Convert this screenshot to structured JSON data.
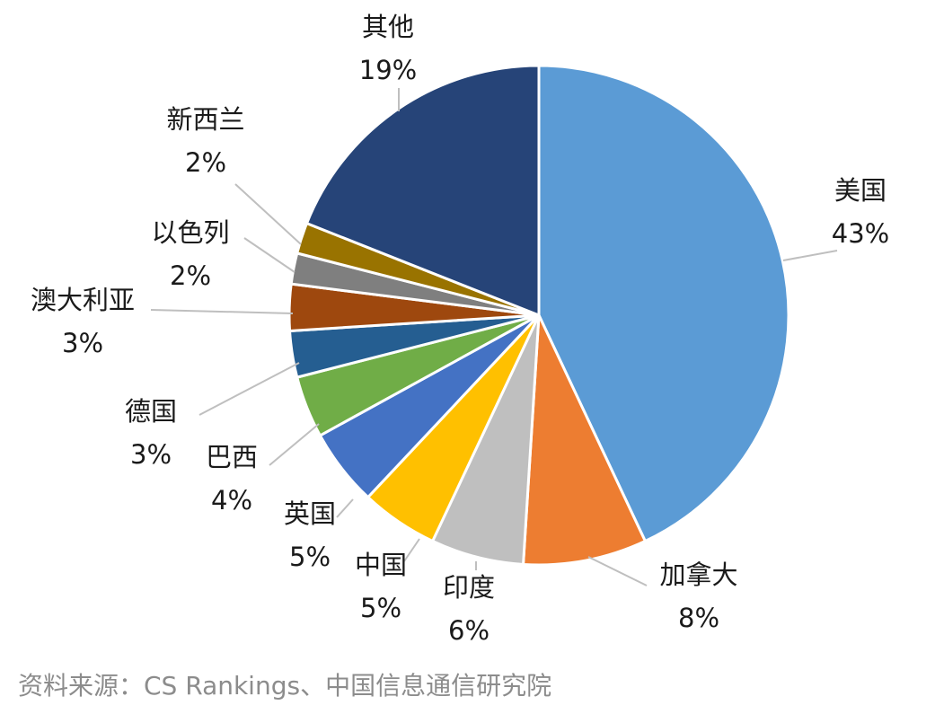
{
  "chart_data": {
    "type": "pie",
    "slices": [
      {
        "label": "美国",
        "value": 43,
        "value_label": "43%",
        "color": "#5B9BD5"
      },
      {
        "label": "加拿大",
        "value": 8,
        "value_label": "8%",
        "color": "#ED7D31"
      },
      {
        "label": "印度",
        "value": 6,
        "value_label": "6%",
        "color": "#BFBFBF"
      },
      {
        "label": "中国",
        "value": 5,
        "value_label": "5%",
        "color": "#FFC000"
      },
      {
        "label": "英国",
        "value": 5,
        "value_label": "5%",
        "color": "#4472C4"
      },
      {
        "label": "巴西",
        "value": 4,
        "value_label": "4%",
        "color": "#70AD47"
      },
      {
        "label": "德国",
        "value": 3,
        "value_label": "3%",
        "color": "#255E91"
      },
      {
        "label": "澳大利亚",
        "value": 3,
        "value_label": "3%",
        "color": "#9E480E"
      },
      {
        "label": "以色列",
        "value": 2,
        "value_label": "2%",
        "color": "#7F7F7F"
      },
      {
        "label": "新西兰",
        "value": 2,
        "value_label": "2%",
        "color": "#997300"
      },
      {
        "label": "其他",
        "value": 19,
        "value_label": "19%",
        "color": "#264478"
      }
    ]
  },
  "source": "资料来源：CS Rankings、中国信息通信研究院"
}
